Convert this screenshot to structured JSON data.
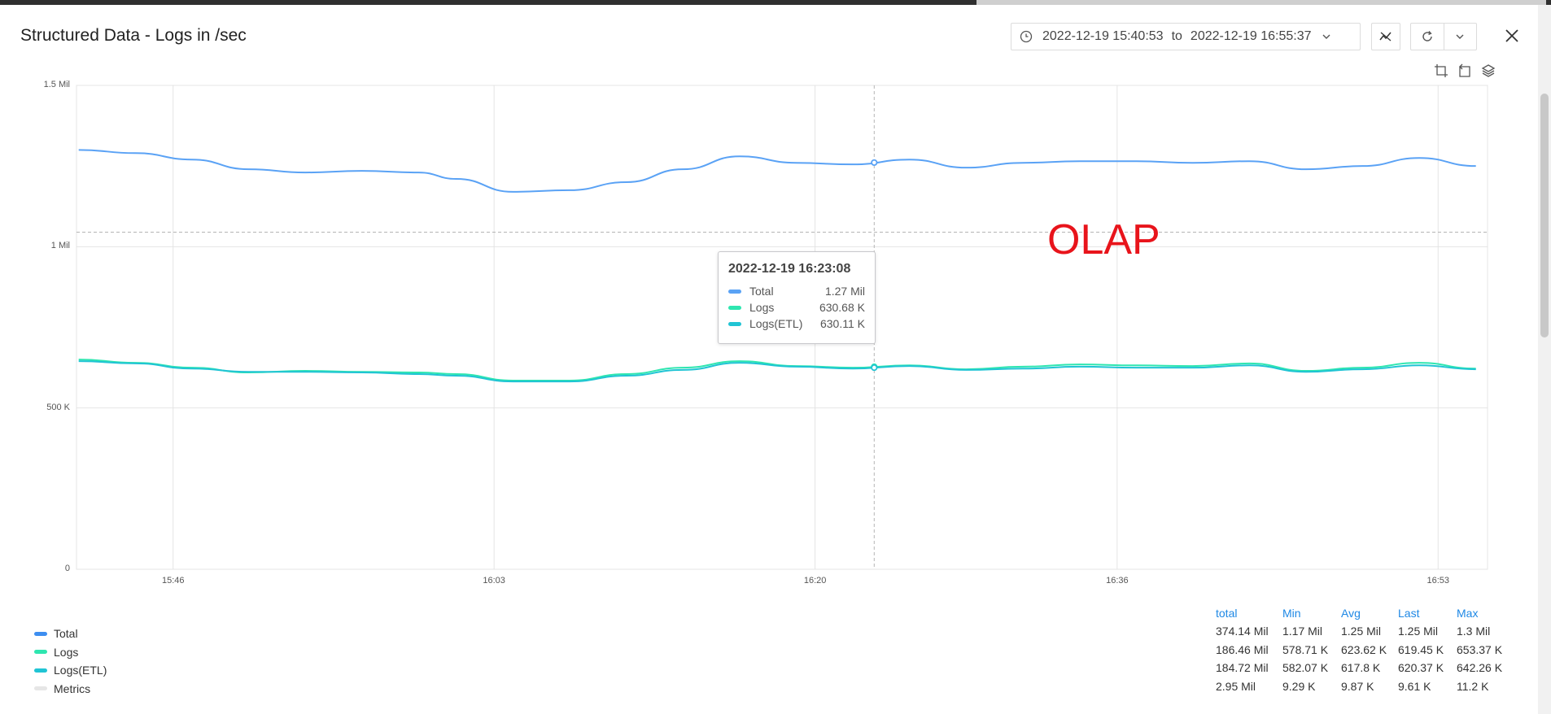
{
  "title": "Structured Data - Logs in /sec",
  "time_range": {
    "from": "2022-12-19 15:40:53",
    "sep": "to",
    "to": "2022-12-19 16:55:37"
  },
  "icons": [
    "clock-icon",
    "chevron-down-icon",
    "chart-style-icon",
    "refresh-icon",
    "close-icon",
    "crop-icon",
    "restore-icon",
    "layers-icon"
  ],
  "annotation": "OLAP",
  "colors": {
    "total": "#5aa2f5",
    "logs": "#2ee6b0",
    "logs_etl": "#20c4d4",
    "metrics": "#e6e6e6",
    "accent": "#1e88e5"
  },
  "tooltip": {
    "time": "2022-12-19 16:23:08",
    "rows": [
      {
        "name": "Total",
        "value": "1.27 Mil"
      },
      {
        "name": "Logs",
        "value": "630.68 K"
      },
      {
        "name": "Logs(ETL)",
        "value": "630.11 K"
      }
    ]
  },
  "chart_data": {
    "type": "line",
    "title": "",
    "xlabel": "",
    "ylabel": "",
    "ylim": [
      0,
      1500000
    ],
    "yticks": [
      {
        "value": 0,
        "label": "0"
      },
      {
        "value": 500000,
        "label": "500 K"
      },
      {
        "value": 1000000,
        "label": "1 Mil"
      },
      {
        "value": 1500000,
        "label": "1.5 Mil"
      }
    ],
    "xlim": [
      "15:40:53",
      "16:55:37"
    ],
    "xticks": [
      "15:46",
      "16:03",
      "16:20",
      "16:36",
      "16:53"
    ],
    "threshold": 1045000,
    "cursor_x": "16:23:08",
    "grid": true,
    "x": [
      "15:41",
      "15:44",
      "15:47",
      "15:50",
      "15:53",
      "15:56",
      "15:59",
      "16:01",
      "16:04",
      "16:07",
      "16:10",
      "16:13",
      "16:16",
      "16:19",
      "16:22",
      "16:25",
      "16:28",
      "16:31",
      "16:34",
      "16:37",
      "16:40",
      "16:43",
      "16:46",
      "16:49",
      "16:52",
      "16:55"
    ],
    "series": [
      {
        "name": "Total",
        "values": [
          1300000,
          1290000,
          1270000,
          1240000,
          1230000,
          1235000,
          1230000,
          1210000,
          1170000,
          1175000,
          1200000,
          1240000,
          1280000,
          1260000,
          1255000,
          1270000,
          1245000,
          1260000,
          1265000,
          1265000,
          1260000,
          1265000,
          1240000,
          1250000,
          1275000,
          1250000
        ]
      },
      {
        "name": "Logs",
        "values": [
          650000,
          640000,
          625000,
          610000,
          615000,
          612000,
          610000,
          605000,
          585000,
          585000,
          605000,
          625000,
          645000,
          630000,
          625000,
          632000,
          620000,
          628000,
          635000,
          632000,
          630000,
          638000,
          615000,
          625000,
          640000,
          622000
        ]
      },
      {
        "name": "Logs(ETL)",
        "values": [
          645000,
          638000,
          622000,
          612000,
          612000,
          610000,
          605000,
          600000,
          582000,
          582000,
          600000,
          618000,
          640000,
          628000,
          622000,
          630000,
          618000,
          622000,
          628000,
          625000,
          625000,
          632000,
          612000,
          620000,
          632000,
          620000
        ]
      }
    ],
    "legend": [
      {
        "name": "Total"
      },
      {
        "name": "Logs"
      },
      {
        "name": "Logs(ETL)"
      },
      {
        "name": "Metrics"
      }
    ],
    "stats_table": {
      "headers": [
        "total",
        "Min",
        "Avg",
        "Last",
        "Max"
      ],
      "rows": [
        [
          "374.14 Mil",
          "1.17 Mil",
          "1.25 Mil",
          "1.25 Mil",
          "1.3 Mil"
        ],
        [
          "186.46 Mil",
          "578.71 K",
          "623.62 K",
          "619.45 K",
          "653.37 K"
        ],
        [
          "184.72 Mil",
          "582.07 K",
          "617.8 K",
          "620.37 K",
          "642.26 K"
        ],
        [
          "2.95 Mil",
          "9.29 K",
          "9.87 K",
          "9.61 K",
          "11.2 K"
        ]
      ]
    }
  }
}
